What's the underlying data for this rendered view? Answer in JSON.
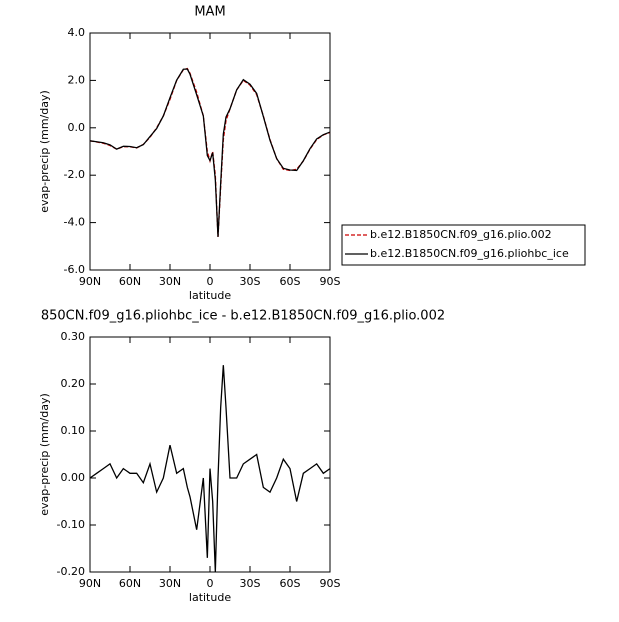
{
  "chart_data": [
    {
      "type": "line",
      "title": "MAM",
      "xlabel": "latitude",
      "ylabel": "evap-precip (mm/day)",
      "x": [
        90,
        85,
        80,
        75,
        70,
        65,
        60,
        55,
        50,
        45,
        40,
        35,
        30,
        25,
        20,
        17,
        15,
        10,
        5,
        2,
        0,
        -2,
        -4,
        -6,
        -8,
        -10,
        -12,
        -15,
        -20,
        -25,
        -30,
        -35,
        -40,
        -45,
        -50,
        -55,
        -60,
        -65,
        -70,
        -75,
        -80,
        -85,
        -90
      ],
      "xlim": [
        90,
        -90
      ],
      "xticks": [
        {
          "value": 90,
          "label": "90N"
        },
        {
          "value": 60,
          "label": "60N"
        },
        {
          "value": 30,
          "label": "30N"
        },
        0,
        {
          "value": -30,
          "label": "30S"
        },
        {
          "value": -60,
          "label": "60S"
        },
        {
          "value": -90,
          "label": "90S"
        }
      ],
      "ylim": [
        -6,
        4
      ],
      "yticks": [
        {
          "value": -6,
          "label": "-6.0"
        },
        {
          "value": -4,
          "label": "-4.0"
        },
        {
          "value": -2,
          "label": "-2.0"
        },
        {
          "value": 0,
          "label": "0.0"
        },
        {
          "value": 2,
          "label": "2.0"
        },
        {
          "value": 4,
          "label": "4.0"
        }
      ],
      "legend": "right",
      "series": [
        {
          "name": "b.e12.B1850CN.f09_g16.plio.002",
          "color": "#cc0000",
          "line_style": "dashed",
          "values": [
            -0.55,
            -0.6,
            -0.65,
            -0.75,
            -0.9,
            -0.8,
            -0.8,
            -0.85,
            -0.7,
            -0.4,
            0.0,
            0.5,
            1.2,
            2.0,
            2.45,
            2.5,
            2.3,
            1.5,
            0.5,
            -1.0,
            -1.4,
            -1.0,
            -2.0,
            -4.6,
            -2.5,
            -0.5,
            0.3,
            0.8,
            1.6,
            2.0,
            1.8,
            1.4,
            0.5,
            -0.5,
            -1.3,
            -1.75,
            -1.8,
            -1.75,
            -1.4,
            -0.9,
            -0.5,
            -0.3,
            -0.2
          ]
        },
        {
          "name": "b.e12.B1850CN.f09_g16.pliohbc_ice",
          "color": "#000000",
          "line_style": "solid",
          "values": [
            -0.55,
            -0.59,
            -0.63,
            -0.72,
            -0.9,
            -0.78,
            -0.79,
            -0.84,
            -0.71,
            -0.37,
            -0.03,
            0.5,
            1.27,
            2.01,
            2.47,
            2.48,
            2.26,
            1.39,
            0.5,
            -1.17,
            -1.38,
            -1.05,
            -2.2,
            -4.6,
            -2.35,
            -0.26,
            0.45,
            0.8,
            1.6,
            2.03,
            1.84,
            1.45,
            0.48,
            -0.53,
            -1.3,
            -1.71,
            -1.78,
            -1.8,
            -1.39,
            -0.88,
            -0.47,
            -0.29,
            -0.18
          ]
        }
      ]
    },
    {
      "type": "line",
      "title": "850CN.f09_g16.pliohbc_ice - b.e12.B1850CN.f09_g16.plio.002",
      "xlabel": "latitude",
      "ylabel": "evap-precip (mm/day)",
      "x": [
        90,
        85,
        80,
        75,
        70,
        65,
        60,
        55,
        50,
        45,
        40,
        35,
        30,
        25,
        20,
        17,
        15,
        10,
        5,
        2,
        0,
        -2,
        -4,
        -6,
        -8,
        -10,
        -12,
        -15,
        -20,
        -25,
        -30,
        -35,
        -40,
        -45,
        -50,
        -55,
        -60,
        -65,
        -70,
        -75,
        -80,
        -85,
        -90
      ],
      "xlim": [
        90,
        -90
      ],
      "xticks": [
        {
          "value": 90,
          "label": "90N"
        },
        {
          "value": 60,
          "label": "60N"
        },
        {
          "value": 30,
          "label": "30N"
        },
        0,
        {
          "value": -30,
          "label": "30S"
        },
        {
          "value": -60,
          "label": "60S"
        },
        {
          "value": -90,
          "label": "90S"
        }
      ],
      "ylim": [
        -0.2,
        0.3
      ],
      "yticks": [
        {
          "value": -0.2,
          "label": "-0.20"
        },
        {
          "value": -0.1,
          "label": "-0.10"
        },
        {
          "value": 0,
          "label": "0.00"
        },
        {
          "value": 0.1,
          "label": "0.10"
        },
        {
          "value": 0.2,
          "label": "0.20"
        },
        {
          "value": 0.3,
          "label": "0.30"
        }
      ],
      "color": "#000000",
      "values": [
        0,
        0.01,
        0.02,
        0.03,
        0,
        0.02,
        0.01,
        0.01,
        -0.01,
        0.03,
        -0.03,
        0,
        0.07,
        0.01,
        0.02,
        -0.02,
        -0.04,
        -0.11,
        0.0,
        -0.17,
        0.02,
        -0.05,
        -0.2,
        0.0,
        0.15,
        0.24,
        0.15,
        0.0,
        0.0,
        0.03,
        0.04,
        0.05,
        -0.02,
        -0.03,
        0.0,
        0.04,
        0.02,
        -0.05,
        0.01,
        0.02,
        0.03,
        0.01,
        0.02
      ]
    }
  ]
}
